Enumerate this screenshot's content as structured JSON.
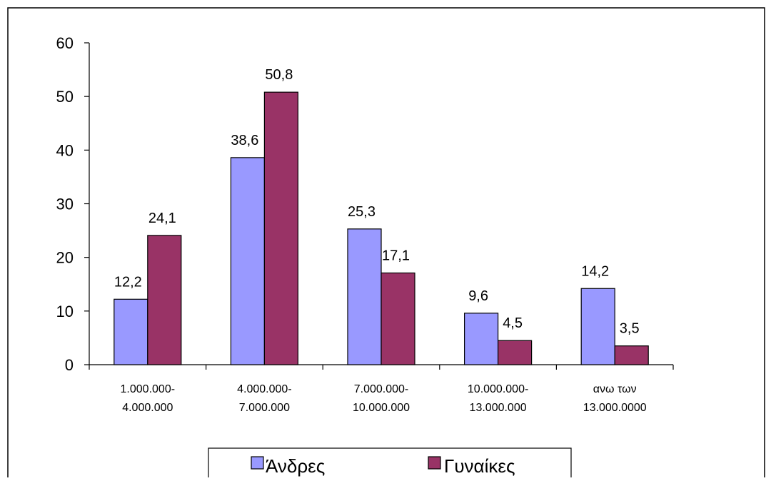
{
  "chart_data": {
    "type": "bar",
    "categories": [
      [
        "1.000.000-",
        "4.000.000"
      ],
      [
        "4.000.000-",
        "7.000.000"
      ],
      [
        "7.000.000-",
        "10.000.000"
      ],
      [
        "10.000.000-",
        "13.000.000"
      ],
      [
        "ανω των",
        "13.000.0000"
      ]
    ],
    "series": [
      {
        "name": "Άνδρες",
        "values": [
          12.2,
          38.6,
          25.3,
          9.6,
          14.2
        ],
        "labels": [
          "12,2",
          "38,6",
          "25,3",
          "9,6",
          "14,2"
        ],
        "color": "#9999ff"
      },
      {
        "name": "Γυναίκες",
        "values": [
          24.1,
          50.8,
          17.1,
          4.5,
          3.5
        ],
        "labels": [
          "24,1",
          "50,8",
          "17,1",
          "4,5",
          "3,5"
        ],
        "color": "#993366"
      }
    ],
    "yticks": [
      "0",
      "10",
      "20",
      "30",
      "40",
      "50",
      "60"
    ],
    "ylim": [
      0,
      60
    ],
    "grid": false,
    "legend_position": "bottom",
    "title": "",
    "xlabel": "",
    "ylabel": ""
  }
}
